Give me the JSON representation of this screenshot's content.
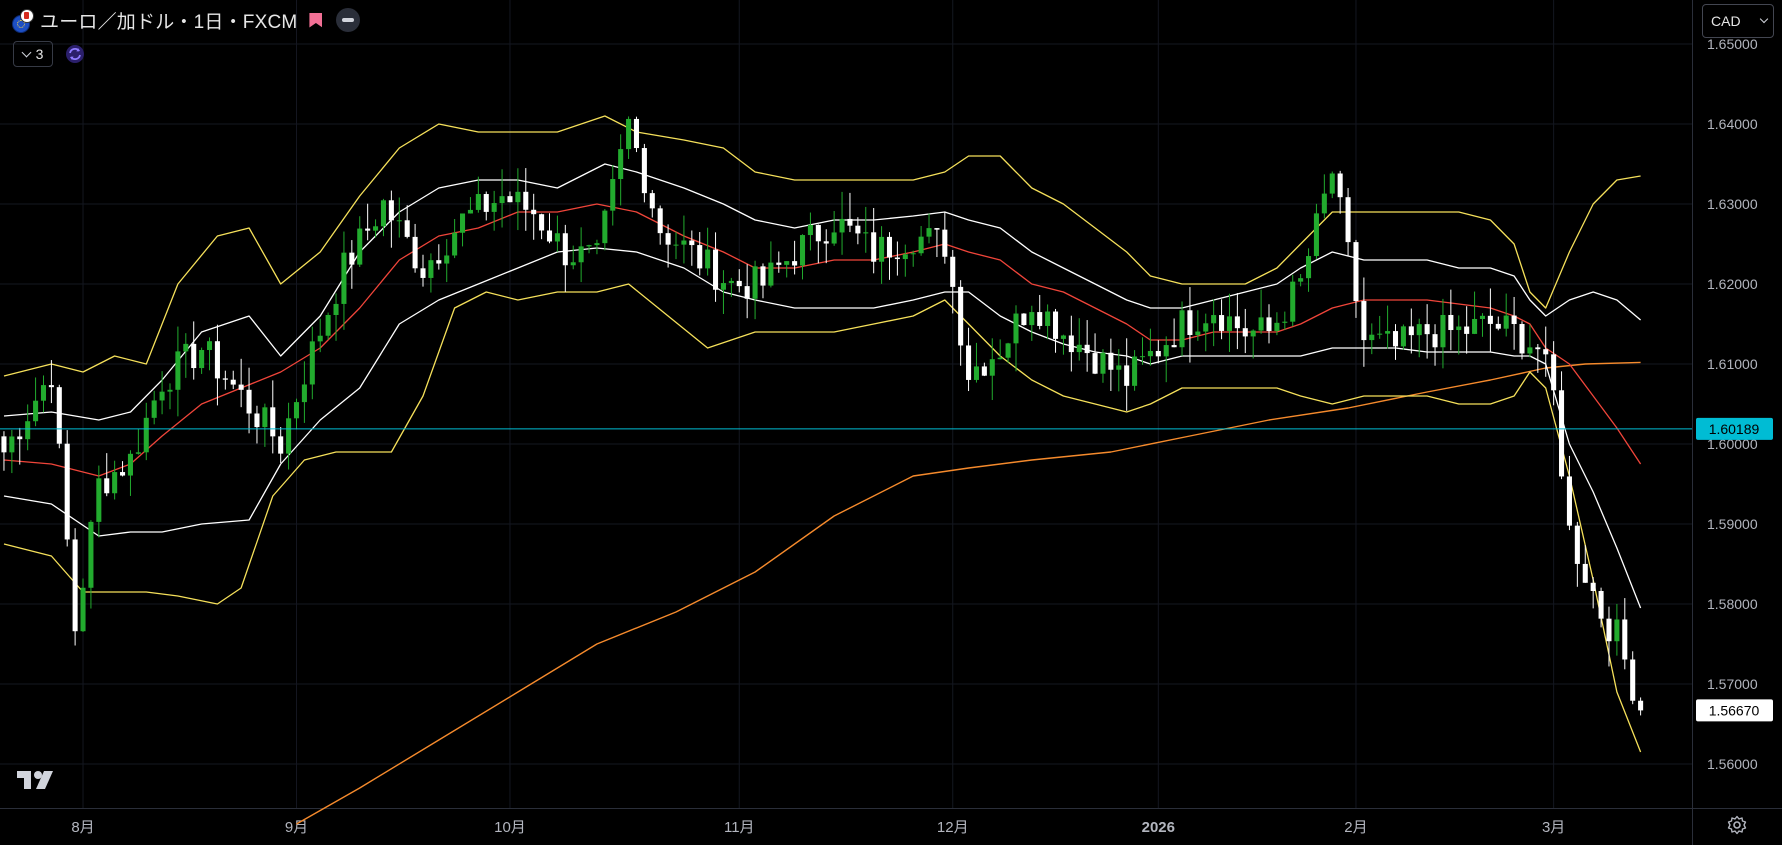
{
  "header": {
    "symbol_title": "ユーロ／加ドル・1日・FXCM",
    "indicator_count": "3"
  },
  "currency_selector": {
    "value": "CAD"
  },
  "price_labels": {
    "current_line": "1.60189",
    "last_price": "1.56670"
  },
  "icons": [
    "eu-flag-icon",
    "ca-flag-icon",
    "bookmark-flag-icon",
    "minus-icon",
    "chevron-down-icon",
    "sync-icon",
    "tradingview-logo-icon",
    "gear-icon"
  ],
  "colors": {
    "background": "#000000",
    "up_candle": "#22ab2e",
    "down_candle": "#ffffff",
    "bb_outer": "#f5e05a",
    "bb_inner": "#ffffff",
    "bb_mid": "#f0453a",
    "ma_long": "#f58a2c",
    "price_line": "#00bcd4"
  },
  "chart_data": {
    "type": "candlestick",
    "ylim": [
      1.5545,
      1.6555
    ],
    "y_ticks": [
      "1.65000",
      "1.64000",
      "1.63000",
      "1.62000",
      "1.61000",
      "1.60000",
      "1.59000",
      "1.58000",
      "1.57000",
      "1.56000"
    ],
    "x_ticks": [
      "8月",
      "9月",
      "10月",
      "11月",
      "12月",
      "2026",
      "2月",
      "3月"
    ],
    "x_tick_bar_index": [
      10,
      37,
      64,
      93,
      120,
      146,
      171,
      196
    ],
    "close_points": [
      [
        0,
        1.599
      ],
      [
        6,
        1.609
      ],
      [
        9,
        1.577
      ],
      [
        12,
        1.595
      ],
      [
        16,
        1.598
      ],
      [
        20,
        1.608
      ],
      [
        25,
        1.612
      ],
      [
        30,
        1.606
      ],
      [
        35,
        1.6
      ],
      [
        38,
        1.609
      ],
      [
        43,
        1.622
      ],
      [
        48,
        1.63
      ],
      [
        53,
        1.622
      ],
      [
        58,
        1.628
      ],
      [
        63,
        1.631
      ],
      [
        67,
        1.629
      ],
      [
        71,
        1.624
      ],
      [
        75,
        1.623
      ],
      [
        79,
        1.64
      ],
      [
        83,
        1.627
      ],
      [
        88,
        1.623
      ],
      [
        92,
        1.62
      ],
      [
        96,
        1.62
      ],
      [
        100,
        1.624
      ],
      [
        105,
        1.628
      ],
      [
        110,
        1.624
      ],
      [
        115,
        1.626
      ],
      [
        119,
        1.625
      ],
      [
        122,
        1.609
      ],
      [
        126,
        1.612
      ],
      [
        130,
        1.618
      ],
      [
        134,
        1.614
      ],
      [
        138,
        1.611
      ],
      [
        142,
        1.608
      ],
      [
        145,
        1.611
      ],
      [
        149,
        1.615
      ],
      [
        153,
        1.617
      ],
      [
        157,
        1.614
      ],
      [
        160,
        1.614
      ],
      [
        164,
        1.62
      ],
      [
        168,
        1.634
      ],
      [
        172,
        1.613
      ],
      [
        176,
        1.612
      ],
      [
        180,
        1.614
      ],
      [
        184,
        1.614
      ],
      [
        188,
        1.615
      ],
      [
        191,
        1.614
      ],
      [
        194,
        1.612
      ],
      [
        196,
        1.606
      ],
      [
        198,
        1.589
      ],
      [
        200,
        1.584
      ],
      [
        202,
        1.579
      ],
      [
        204,
        1.576
      ],
      [
        206,
        1.57
      ],
      [
        207,
        1.5667
      ]
    ],
    "indicators": {
      "bb_upper_points": [
        [
          0,
          1.6085
        ],
        [
          6,
          1.61
        ],
        [
          10,
          1.609
        ],
        [
          14,
          1.611
        ],
        [
          18,
          1.61
        ],
        [
          22,
          1.62
        ],
        [
          27,
          1.626
        ],
        [
          31,
          1.627
        ],
        [
          35,
          1.62
        ],
        [
          40,
          1.624
        ],
        [
          45,
          1.631
        ],
        [
          50,
          1.637
        ],
        [
          55,
          1.64
        ],
        [
          60,
          1.639
        ],
        [
          65,
          1.639
        ],
        [
          70,
          1.639
        ],
        [
          76,
          1.641
        ],
        [
          80,
          1.639
        ],
        [
          86,
          1.638
        ],
        [
          91,
          1.637
        ],
        [
          95,
          1.634
        ],
        [
          100,
          1.633
        ],
        [
          105,
          1.633
        ],
        [
          110,
          1.633
        ],
        [
          115,
          1.633
        ],
        [
          119,
          1.634
        ],
        [
          122,
          1.636
        ],
        [
          126,
          1.636
        ],
        [
          130,
          1.632
        ],
        [
          134,
          1.63
        ],
        [
          138,
          1.627
        ],
        [
          142,
          1.624
        ],
        [
          145,
          1.621
        ],
        [
          149,
          1.62
        ],
        [
          153,
          1.62
        ],
        [
          157,
          1.62
        ],
        [
          161,
          1.622
        ],
        [
          164,
          1.625
        ],
        [
          168,
          1.629
        ],
        [
          172,
          1.629
        ],
        [
          176,
          1.629
        ],
        [
          180,
          1.629
        ],
        [
          184,
          1.629
        ],
        [
          188,
          1.628
        ],
        [
          191,
          1.625
        ],
        [
          193,
          1.619
        ],
        [
          195,
          1.617
        ],
        [
          198,
          1.624
        ],
        [
          201,
          1.63
        ],
        [
          204,
          1.633
        ],
        [
          207,
          1.6335
        ]
      ],
      "bb_inner_upper_points": [
        [
          0,
          1.6035
        ],
        [
          6,
          1.604
        ],
        [
          12,
          1.603
        ],
        [
          16,
          1.604
        ],
        [
          20,
          1.608
        ],
        [
          25,
          1.614
        ],
        [
          31,
          1.616
        ],
        [
          35,
          1.611
        ],
        [
          40,
          1.616
        ],
        [
          45,
          1.624
        ],
        [
          50,
          1.629
        ],
        [
          55,
          1.632
        ],
        [
          60,
          1.633
        ],
        [
          65,
          1.633
        ],
        [
          70,
          1.632
        ],
        [
          76,
          1.635
        ],
        [
          80,
          1.634
        ],
        [
          86,
          1.632
        ],
        [
          91,
          1.63
        ],
        [
          95,
          1.628
        ],
        [
          100,
          1.627
        ],
        [
          105,
          1.628
        ],
        [
          110,
          1.628
        ],
        [
          115,
          1.6285
        ],
        [
          119,
          1.629
        ],
        [
          122,
          1.628
        ],
        [
          126,
          1.627
        ],
        [
          130,
          1.624
        ],
        [
          134,
          1.622
        ],
        [
          138,
          1.62
        ],
        [
          142,
          1.618
        ],
        [
          145,
          1.617
        ],
        [
          149,
          1.617
        ],
        [
          153,
          1.618
        ],
        [
          157,
          1.619
        ],
        [
          161,
          1.62
        ],
        [
          164,
          1.622
        ],
        [
          168,
          1.624
        ],
        [
          172,
          1.623
        ],
        [
          176,
          1.623
        ],
        [
          180,
          1.623
        ],
        [
          184,
          1.622
        ],
        [
          188,
          1.622
        ],
        [
          191,
          1.621
        ],
        [
          193,
          1.618
        ],
        [
          195,
          1.616
        ],
        [
          198,
          1.618
        ],
        [
          201,
          1.619
        ],
        [
          204,
          1.618
        ],
        [
          207,
          1.6155
        ]
      ],
      "bb_mid_points": [
        [
          0,
          1.598
        ],
        [
          6,
          1.5975
        ],
        [
          12,
          1.596
        ],
        [
          16,
          1.5975
        ],
        [
          20,
          1.601
        ],
        [
          25,
          1.605
        ],
        [
          30,
          1.607
        ],
        [
          35,
          1.609
        ],
        [
          40,
          1.612
        ],
        [
          45,
          1.617
        ],
        [
          50,
          1.623
        ],
        [
          55,
          1.626
        ],
        [
          60,
          1.627
        ],
        [
          65,
          1.629
        ],
        [
          70,
          1.629
        ],
        [
          75,
          1.63
        ],
        [
          80,
          1.629
        ],
        [
          86,
          1.626
        ],
        [
          91,
          1.624
        ],
        [
          95,
          1.622
        ],
        [
          100,
          1.622
        ],
        [
          105,
          1.623
        ],
        [
          110,
          1.623
        ],
        [
          115,
          1.624
        ],
        [
          119,
          1.625
        ],
        [
          122,
          1.624
        ],
        [
          126,
          1.623
        ],
        [
          130,
          1.62
        ],
        [
          134,
          1.619
        ],
        [
          138,
          1.617
        ],
        [
          142,
          1.615
        ],
        [
          145,
          1.613
        ],
        [
          149,
          1.613
        ],
        [
          153,
          1.614
        ],
        [
          157,
          1.614
        ],
        [
          161,
          1.614
        ],
        [
          164,
          1.615
        ],
        [
          168,
          1.617
        ],
        [
          172,
          1.618
        ],
        [
          176,
          1.618
        ],
        [
          180,
          1.618
        ],
        [
          184,
          1.6175
        ],
        [
          188,
          1.617
        ],
        [
          191,
          1.616
        ],
        [
          193,
          1.615
        ],
        [
          195,
          1.612
        ],
        [
          198,
          1.61
        ],
        [
          201,
          1.606
        ],
        [
          204,
          1.602
        ],
        [
          207,
          1.5975
        ]
      ],
      "bb_inner_lower_points": [
        [
          0,
          1.5935
        ],
        [
          6,
          1.5925
        ],
        [
          12,
          1.5885
        ],
        [
          16,
          1.589
        ],
        [
          20,
          1.589
        ],
        [
          25,
          1.59
        ],
        [
          31,
          1.5905
        ],
        [
          35,
          1.5975
        ],
        [
          40,
          1.603
        ],
        [
          45,
          1.607
        ],
        [
          50,
          1.615
        ],
        [
          55,
          1.618
        ],
        [
          60,
          1.62
        ],
        [
          65,
          1.622
        ],
        [
          70,
          1.624
        ],
        [
          75,
          1.6245
        ],
        [
          80,
          1.624
        ],
        [
          86,
          1.622
        ],
        [
          91,
          1.619
        ],
        [
          95,
          1.618
        ],
        [
          100,
          1.617
        ],
        [
          105,
          1.617
        ],
        [
          110,
          1.617
        ],
        [
          115,
          1.618
        ],
        [
          119,
          1.619
        ],
        [
          122,
          1.619
        ],
        [
          126,
          1.616
        ],
        [
          130,
          1.614
        ],
        [
          134,
          1.6125
        ],
        [
          138,
          1.6115
        ],
        [
          142,
          1.611
        ],
        [
          145,
          1.61
        ],
        [
          149,
          1.611
        ],
        [
          153,
          1.611
        ],
        [
          157,
          1.611
        ],
        [
          161,
          1.611
        ],
        [
          164,
          1.611
        ],
        [
          168,
          1.612
        ],
        [
          172,
          1.612
        ],
        [
          176,
          1.612
        ],
        [
          180,
          1.6115
        ],
        [
          184,
          1.6115
        ],
        [
          188,
          1.6115
        ],
        [
          191,
          1.611
        ],
        [
          193,
          1.611
        ],
        [
          195,
          1.61
        ],
        [
          198,
          1.6
        ],
        [
          201,
          1.594
        ],
        [
          204,
          1.587
        ],
        [
          207,
          1.5795
        ]
      ],
      "bb_lower_points": [
        [
          0,
          1.5875
        ],
        [
          6,
          1.586
        ],
        [
          10,
          1.5815
        ],
        [
          14,
          1.5815
        ],
        [
          18,
          1.5815
        ],
        [
          22,
          1.581
        ],
        [
          27,
          1.58
        ],
        [
          30,
          1.582
        ],
        [
          34,
          1.5935
        ],
        [
          38,
          1.598
        ],
        [
          42,
          1.599
        ],
        [
          45,
          1.599
        ],
        [
          49,
          1.599
        ],
        [
          53,
          1.606
        ],
        [
          57,
          1.617
        ],
        [
          61,
          1.619
        ],
        [
          65,
          1.618
        ],
        [
          70,
          1.619
        ],
        [
          75,
          1.619
        ],
        [
          79,
          1.62
        ],
        [
          84,
          1.616
        ],
        [
          89,
          1.612
        ],
        [
          95,
          1.614
        ],
        [
          100,
          1.614
        ],
        [
          105,
          1.614
        ],
        [
          110,
          1.615
        ],
        [
          115,
          1.616
        ],
        [
          119,
          1.618
        ],
        [
          122,
          1.615
        ],
        [
          126,
          1.611
        ],
        [
          130,
          1.608
        ],
        [
          134,
          1.606
        ],
        [
          138,
          1.605
        ],
        [
          142,
          1.604
        ],
        [
          145,
          1.605
        ],
        [
          149,
          1.607
        ],
        [
          153,
          1.607
        ],
        [
          157,
          1.607
        ],
        [
          161,
          1.607
        ],
        [
          164,
          1.606
        ],
        [
          168,
          1.605
        ],
        [
          172,
          1.606
        ],
        [
          176,
          1.606
        ],
        [
          180,
          1.606
        ],
        [
          184,
          1.605
        ],
        [
          188,
          1.605
        ],
        [
          191,
          1.606
        ],
        [
          193,
          1.609
        ],
        [
          195,
          1.607
        ],
        [
          198,
          1.596
        ],
        [
          201,
          1.583
        ],
        [
          204,
          1.569
        ],
        [
          207,
          1.5615
        ]
      ],
      "ma_long_points": [
        [
          37,
          1.5525
        ],
        [
          45,
          1.557
        ],
        [
          55,
          1.563
        ],
        [
          65,
          1.569
        ],
        [
          75,
          1.575
        ],
        [
          85,
          1.579
        ],
        [
          95,
          1.584
        ],
        [
          105,
          1.591
        ],
        [
          115,
          1.596
        ],
        [
          122,
          1.597
        ],
        [
          130,
          1.598
        ],
        [
          140,
          1.599
        ],
        [
          150,
          1.601
        ],
        [
          160,
          1.603
        ],
        [
          170,
          1.6045
        ],
        [
          180,
          1.6065
        ],
        [
          188,
          1.608
        ],
        [
          195,
          1.6095
        ],
        [
          200,
          1.61
        ],
        [
          207,
          1.6102
        ]
      ]
    }
  }
}
